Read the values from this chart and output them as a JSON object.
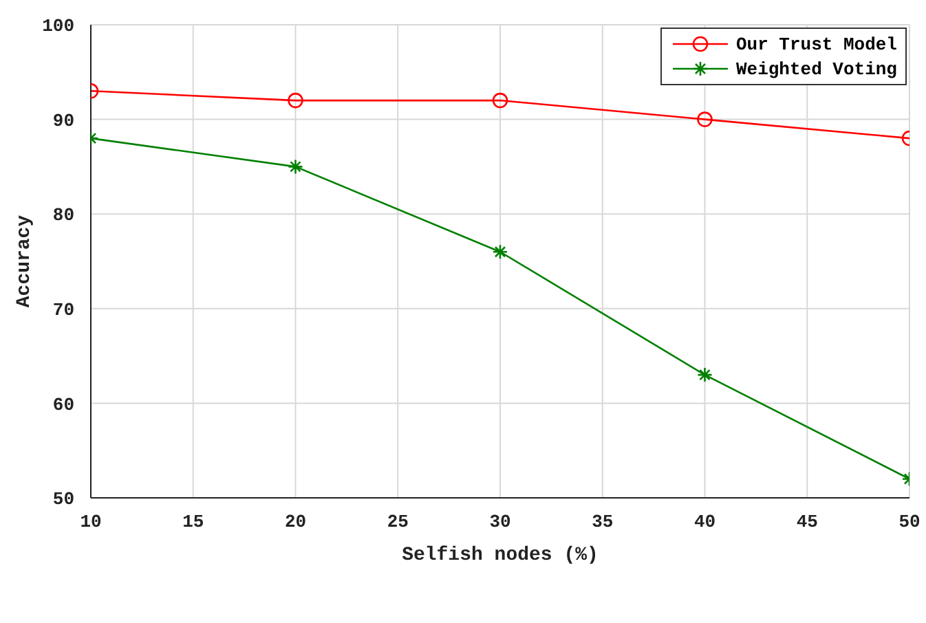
{
  "chart_data": {
    "type": "line",
    "xlabel": "Selfish nodes (%)",
    "ylabel": "Accuracy",
    "x": [
      10,
      20,
      30,
      40,
      50
    ],
    "series": [
      {
        "name": "Our Trust Model",
        "color": "#ff0000",
        "marker": "circle",
        "values": [
          93,
          92,
          92,
          90,
          88
        ]
      },
      {
        "name": "Weighted Voting",
        "color": "#008000",
        "marker": "cross",
        "values": [
          88,
          85,
          76,
          63,
          52
        ]
      }
    ],
    "xlim": [
      10,
      50
    ],
    "xticks": [
      10,
      15,
      20,
      25,
      30,
      35,
      40,
      45,
      50
    ],
    "ylim": [
      50,
      100
    ],
    "yticks": [
      50,
      60,
      70,
      80,
      90,
      100
    ],
    "grid": true,
    "legend": "top right"
  }
}
